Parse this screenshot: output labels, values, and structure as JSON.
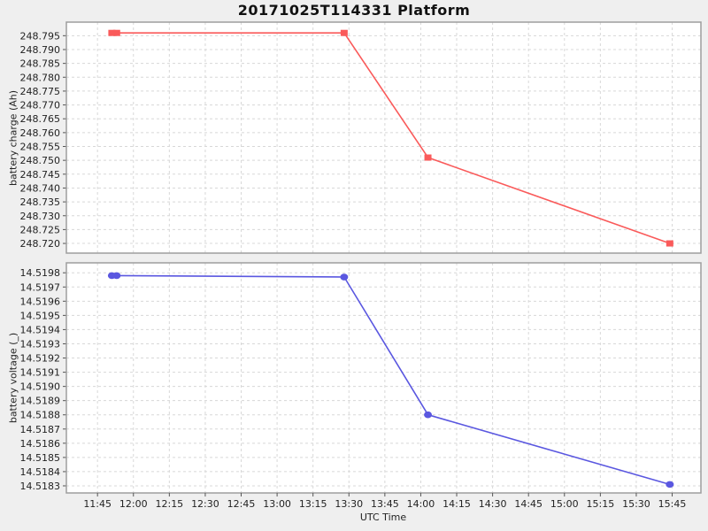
{
  "title": "20171025T114331 Platform",
  "xlabel": "UTC Time",
  "x_tick_labels": [
    "11:45",
    "12:00",
    "12:15",
    "12:30",
    "12:45",
    "13:00",
    "13:15",
    "13:30",
    "13:45",
    "14:00",
    "14:15",
    "14:30",
    "14:45",
    "15:00",
    "15:15",
    "15:30",
    "15:45"
  ],
  "colors": {
    "figure_bg": "#efefef",
    "plot_bg": "#ffffff",
    "grid": "#d8d8d8",
    "plot_border": "#9e9e9e",
    "tick": "#555555",
    "text": "#222222",
    "charge_line": "#fa5a5a",
    "voltage_line": "#5a57e0"
  },
  "chart_data": [
    {
      "type": "line",
      "name": "battery charge",
      "ylabel": "battery charge (Ah)",
      "marker": "square",
      "color": "#fa5a5a",
      "x": [
        "11:51",
        "11:53",
        "13:28",
        "14:03",
        "15:44"
      ],
      "y": [
        248.796,
        248.796,
        248.796,
        248.751,
        248.72
      ],
      "ytick_labels": [
        "248.795",
        "248.790",
        "248.785",
        "248.780",
        "248.775",
        "248.770",
        "248.765",
        "248.760",
        "248.755",
        "248.750",
        "248.745",
        "248.740",
        "248.735",
        "248.730",
        "248.725",
        "248.720"
      ],
      "ylim": [
        248.7165,
        248.7999
      ],
      "grid": true,
      "legend": "none"
    },
    {
      "type": "line",
      "name": "battery voltage",
      "ylabel": "battery voltage (_)",
      "marker": "circle",
      "color": "#5a57e0",
      "x": [
        "11:51",
        "11:53",
        "13:28",
        "14:03",
        "15:44"
      ],
      "y": [
        14.51978,
        14.51978,
        14.51977,
        14.5188,
        14.51831
      ],
      "ytick_labels": [
        "14.5198",
        "14.5197",
        "14.5196",
        "14.5195",
        "14.5194",
        "14.5193",
        "14.5192",
        "14.5191",
        "14.5190",
        "14.5189",
        "14.5188",
        "14.5187",
        "14.5186",
        "14.5185",
        "14.5184",
        "14.5183"
      ],
      "ylim": [
        14.51825,
        14.51987
      ],
      "grid": true,
      "legend": "none"
    }
  ],
  "x_axis": {
    "xlim_minutes": [
      692,
      957
    ],
    "tick_interval_minutes": 15
  }
}
